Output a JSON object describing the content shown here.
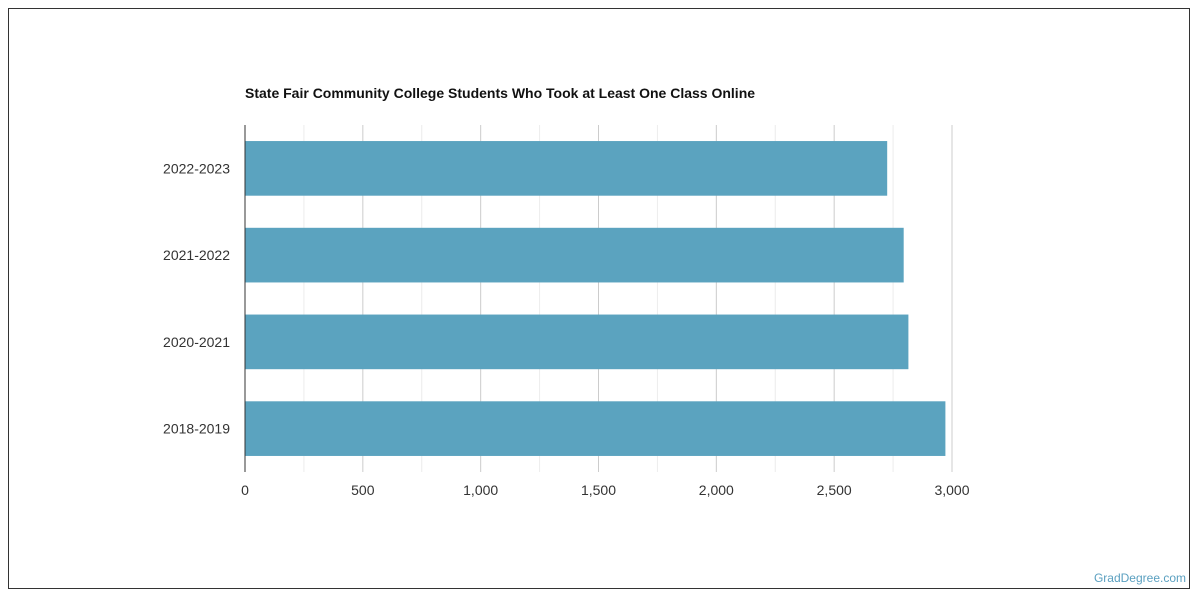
{
  "chart_data": {
    "type": "bar",
    "orientation": "horizontal",
    "title": "State Fair Community College Students Who Took at Least One Class Online",
    "categories": [
      "2022-2023",
      "2021-2022",
      "2020-2021",
      "2018-2019"
    ],
    "values": [
      2725,
      2795,
      2815,
      2972
    ],
    "xlim": [
      0,
      3000
    ],
    "xticks": [
      0,
      500,
      1000,
      1500,
      2000,
      2500,
      3000
    ],
    "xtick_labels": [
      "0",
      "500",
      "1,000",
      "1,500",
      "2,000",
      "2,500",
      "3,000"
    ],
    "grid": true,
    "bar_color": "#5ba3bf"
  },
  "watermark": "GradDegree.com"
}
